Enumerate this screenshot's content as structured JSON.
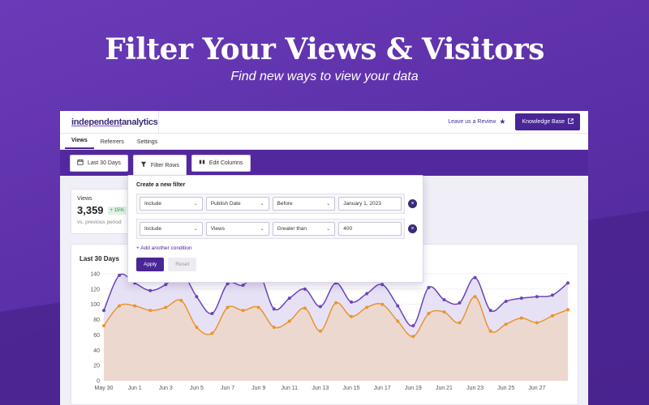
{
  "hero": {
    "title": "Filter Your Views & Visitors",
    "subtitle": "Find new ways to view your data"
  },
  "app": {
    "logo_text_a": "independent",
    "logo_text_b": " analytics",
    "review_link": "Leave us a Review",
    "kb_button": "Knowledge Base",
    "tabs": [
      {
        "label": "Views",
        "active": true
      },
      {
        "label": "Referrers"
      },
      {
        "label": "Settings"
      }
    ],
    "toolbar": {
      "date_range": "Last 30 Days",
      "filter_rows": "Filter Rows",
      "edit_columns": "Edit Columns"
    }
  },
  "stat": {
    "label": "Views",
    "value": "3,359",
    "change": "+ 15%",
    "compare": "vs. previous period"
  },
  "filter": {
    "title": "Create a new filter",
    "rows": [
      {
        "mode": "Include",
        "column": "Publish Date",
        "operator": "Before",
        "value": "January 1, 2023"
      },
      {
        "mode": "Include",
        "column": "Views",
        "operator": "Greater than",
        "value": "400"
      }
    ],
    "add_condition": "+ Add another condition",
    "apply": "Apply",
    "reset": "Reset"
  },
  "chart_data": {
    "type": "area",
    "title": "Last 30 Days",
    "ylim": [
      0,
      140
    ],
    "yticks": [
      0,
      20,
      40,
      60,
      80,
      100,
      120,
      140
    ],
    "xtick_labels": [
      "May 30",
      "Jun 1",
      "Jun 3",
      "Jun 5",
      "Jun 7",
      "Jun 9",
      "Jun 11",
      "Jun 13",
      "Jun 15",
      "Jun 17",
      "Jun 19",
      "Jun 21",
      "Jun 23",
      "Jun 25",
      "Jun 27"
    ],
    "grid": true,
    "series": [
      {
        "color": "#6b45b8",
        "fill": "#e3dcf3",
        "values": [
          92,
          138,
          128,
          118,
          126,
          142,
          110,
          88,
          127,
          125,
          142,
          94,
          108,
          120,
          97,
          128,
          103,
          114,
          126,
          98,
          72,
          122,
          106,
          102,
          135,
          92,
          104,
          108,
          110,
          112,
          128
        ]
      },
      {
        "color": "#e8952f",
        "fill": "#ecd6c8",
        "values": [
          72,
          98,
          98,
          92,
          96,
          105,
          70,
          62,
          96,
          92,
          96,
          70,
          78,
          95,
          65,
          102,
          84,
          96,
          100,
          78,
          58,
          88,
          90,
          76,
          110,
          65,
          74,
          82,
          76,
          85,
          93
        ]
      }
    ]
  },
  "colors": {
    "brand": "#53289f",
    "accent": "#4a2596"
  },
  "icons": {
    "calendar": "calendar-icon",
    "filter": "filter-icon",
    "columns": "columns-icon",
    "star": "star-icon",
    "external": "external-link-icon",
    "remove": "remove-icon"
  }
}
